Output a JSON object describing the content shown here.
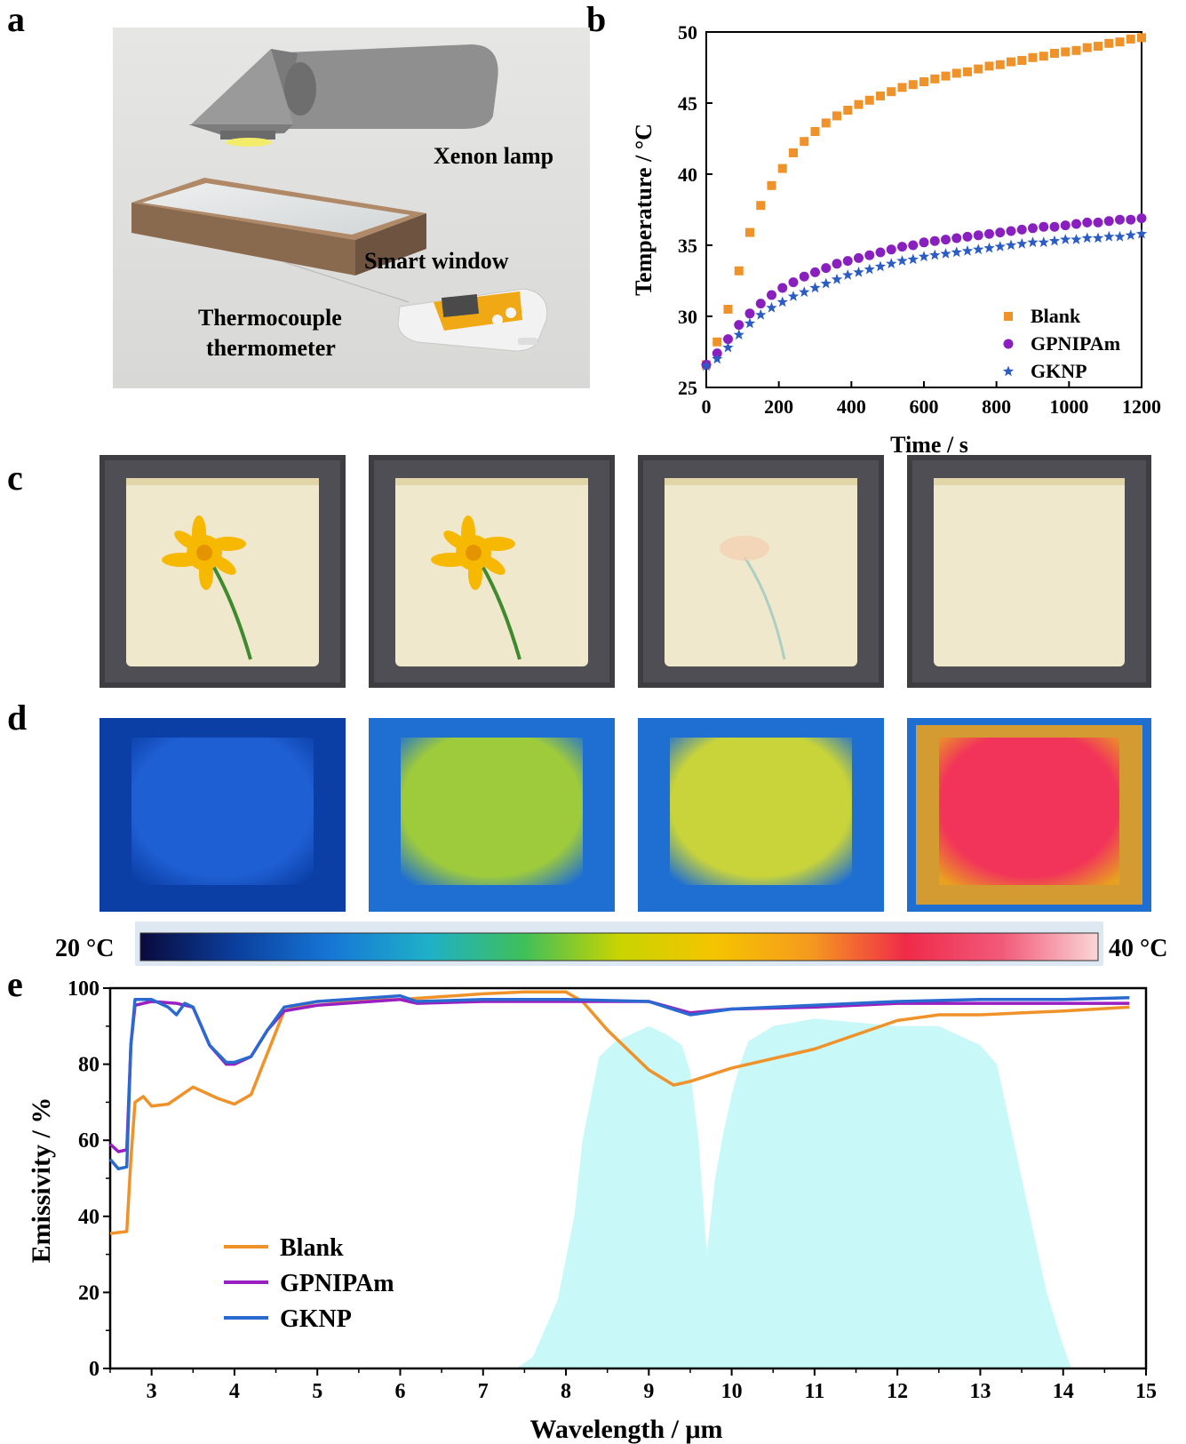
{
  "panel_labels": {
    "a": "a",
    "b": "b",
    "c": "c",
    "d": "d",
    "e": "e"
  },
  "panel_a": {
    "lamp_label": "Xenon lamp",
    "window_label": "Smart window",
    "thermo_label_line1": "Thermocouple",
    "thermo_label_line2": "thermometer"
  },
  "colorbar": {
    "min_label": "20 °C",
    "max_label": "40 °C",
    "stops": [
      "#0a0a3c",
      "#0b3f9e",
      "#1677d6",
      "#1fb0c8",
      "#3fbf5a",
      "#c8d400",
      "#f5c400",
      "#f59a1e",
      "#f02a4a",
      "#f25a7a",
      "#fad6d6"
    ]
  },
  "thermal_images": [
    {
      "inner": "#1f5fd4",
      "outer": "#0b3fa6"
    },
    {
      "inner": "#9ecb3c",
      "outer": "#1f6fd2"
    },
    {
      "inner": "#c8d43a",
      "outer": "#1f6fd2"
    },
    {
      "inner": "#f2335a",
      "outer": "#e8a020"
    }
  ],
  "chart_data": [
    {
      "type": "scatter",
      "xlabel": "Time / s",
      "ylabel": "Temperature / °C",
      "xlim": [
        0,
        1200
      ],
      "ylim": [
        25,
        50
      ],
      "xticks": [
        0,
        200,
        400,
        600,
        800,
        1000,
        1200
      ],
      "yticks": [
        25,
        30,
        35,
        40,
        45,
        50
      ],
      "legend_position": "bottom-right",
      "series": [
        {
          "name": "Blank",
          "color": "#f0922a",
          "marker": "square",
          "x": [
            0,
            30,
            60,
            90,
            120,
            150,
            180,
            210,
            240,
            270,
            300,
            330,
            360,
            390,
            420,
            450,
            480,
            510,
            540,
            570,
            600,
            630,
            660,
            690,
            720,
            750,
            780,
            810,
            840,
            870,
            900,
            930,
            960,
            990,
            1020,
            1050,
            1080,
            1110,
            1140,
            1170,
            1200
          ],
          "y": [
            26.6,
            28.2,
            30.5,
            33.2,
            35.9,
            37.8,
            39.2,
            40.4,
            41.5,
            42.3,
            43.0,
            43.6,
            44.1,
            44.5,
            44.9,
            45.2,
            45.5,
            45.8,
            46.1,
            46.3,
            46.5,
            46.7,
            46.9,
            47.1,
            47.2,
            47.4,
            47.6,
            47.7,
            47.9,
            48.0,
            48.2,
            48.3,
            48.5,
            48.6,
            48.7,
            48.9,
            49.0,
            49.2,
            49.3,
            49.5,
            49.6
          ]
        },
        {
          "name": "GPNIPAm",
          "color": "#8a1fc0",
          "marker": "circle",
          "x": [
            0,
            30,
            60,
            90,
            120,
            150,
            180,
            210,
            240,
            270,
            300,
            330,
            360,
            390,
            420,
            450,
            480,
            510,
            540,
            570,
            600,
            630,
            660,
            690,
            720,
            750,
            780,
            810,
            840,
            870,
            900,
            930,
            960,
            990,
            1020,
            1050,
            1080,
            1110,
            1140,
            1170,
            1200
          ],
          "y": [
            26.6,
            27.4,
            28.4,
            29.4,
            30.2,
            30.9,
            31.5,
            32.0,
            32.4,
            32.8,
            33.1,
            33.4,
            33.7,
            33.9,
            34.1,
            34.3,
            34.5,
            34.7,
            34.9,
            35.0,
            35.2,
            35.3,
            35.4,
            35.5,
            35.6,
            35.7,
            35.8,
            35.9,
            36.0,
            36.1,
            36.2,
            36.3,
            36.3,
            36.4,
            36.5,
            36.6,
            36.6,
            36.7,
            36.8,
            36.8,
            36.9
          ]
        },
        {
          "name": "GKNP",
          "color": "#2a5cc4",
          "marker": "star",
          "x": [
            0,
            30,
            60,
            90,
            120,
            150,
            180,
            210,
            240,
            270,
            300,
            330,
            360,
            390,
            420,
            450,
            480,
            510,
            540,
            570,
            600,
            630,
            660,
            690,
            720,
            750,
            780,
            810,
            840,
            870,
            900,
            930,
            960,
            990,
            1020,
            1050,
            1080,
            1110,
            1140,
            1170,
            1200
          ],
          "y": [
            26.5,
            27.0,
            27.8,
            28.7,
            29.5,
            30.1,
            30.6,
            31.0,
            31.4,
            31.7,
            32.0,
            32.3,
            32.6,
            32.9,
            33.1,
            33.3,
            33.5,
            33.7,
            33.9,
            34.0,
            34.2,
            34.3,
            34.4,
            34.5,
            34.6,
            34.7,
            34.8,
            34.9,
            35.0,
            35.1,
            35.2,
            35.2,
            35.3,
            35.4,
            35.4,
            35.5,
            35.5,
            35.6,
            35.6,
            35.7,
            35.8
          ]
        }
      ]
    },
    {
      "type": "line",
      "xlabel": "Wavelength / μm",
      "ylabel": "Emissivity / %",
      "xlim": [
        2.5,
        15
      ],
      "ylim": [
        0,
        100
      ],
      "xticks": [
        3,
        4,
        5,
        6,
        7,
        8,
        9,
        10,
        11,
        12,
        13,
        14,
        15
      ],
      "yticks": [
        0,
        20,
        40,
        60,
        80,
        100
      ],
      "legend_position": "bottom-left",
      "background_fill_color": "#c8f8f8",
      "background_fill_x": [
        7.4,
        7.6,
        7.9,
        8.1,
        8.2,
        8.4,
        8.6,
        8.8,
        9.0,
        9.2,
        9.4,
        9.5,
        9.6,
        9.7,
        9.8,
        9.9,
        10.0,
        10.1,
        10.2,
        10.5,
        11.0,
        11.5,
        12.0,
        12.5,
        13.0,
        13.2,
        13.4,
        13.6,
        13.8,
        14.0,
        14.1
      ],
      "background_fill_y": [
        0,
        3,
        18,
        40,
        60,
        82,
        86,
        88,
        90,
        88,
        85,
        78,
        60,
        30,
        50,
        62,
        72,
        80,
        86,
        90,
        92,
        91,
        90,
        90,
        85,
        80,
        60,
        40,
        20,
        6,
        0
      ],
      "series": [
        {
          "name": "Blank",
          "color": "#f0922a",
          "x": [
            2.5,
            2.7,
            2.75,
            2.8,
            2.9,
            3.0,
            3.2,
            3.5,
            3.8,
            4.0,
            4.2,
            4.4,
            4.6,
            5.0,
            6.0,
            7.0,
            7.5,
            8.0,
            8.2,
            8.5,
            9.0,
            9.3,
            9.5,
            10.0,
            11.0,
            12.0,
            12.5,
            13.0,
            14.0,
            14.8
          ],
          "y": [
            35.5,
            36,
            55,
            70,
            71.5,
            69,
            69.5,
            74,
            71,
            69.5,
            72,
            83,
            94,
            96.5,
            97,
            98.5,
            99,
            99,
            96.5,
            89,
            78.5,
            74.5,
            75.5,
            79,
            84,
            91.5,
            93,
            93,
            94,
            95
          ]
        },
        {
          "name": "GPNIPAm",
          "color": "#9a1fc0",
          "x": [
            2.5,
            2.6,
            2.7,
            2.75,
            2.8,
            3.0,
            3.3,
            3.5,
            3.7,
            3.9,
            4.0,
            4.2,
            4.4,
            4.6,
            5.0,
            6.0,
            6.2,
            7.0,
            8.0,
            9.0,
            9.5,
            10.0,
            11.0,
            12.0,
            13.0,
            14.0,
            14.8
          ],
          "y": [
            59,
            57,
            57.5,
            85,
            95.5,
            96.5,
            96,
            95,
            85,
            80,
            80,
            82,
            89,
            94,
            95.5,
            97,
            96,
            96.5,
            96.5,
            96.5,
            93.5,
            94.5,
            95,
            96,
            96,
            96,
            96
          ]
        },
        {
          "name": "GKNP",
          "color": "#2a6ad0",
          "x": [
            2.5,
            2.6,
            2.7,
            2.75,
            2.8,
            3.0,
            3.2,
            3.3,
            3.4,
            3.5,
            3.7,
            3.9,
            4.0,
            4.2,
            4.4,
            4.6,
            5.0,
            6.0,
            6.2,
            7.0,
            8.0,
            9.0,
            9.5,
            10.0,
            11.0,
            12.0,
            13.0,
            14.0,
            14.8
          ],
          "y": [
            55,
            52.5,
            53,
            85,
            97,
            97,
            95,
            93,
            96,
            95,
            85,
            80.5,
            80.5,
            82,
            89,
            95,
            96.5,
            98,
            96.5,
            97,
            97,
            96.5,
            93,
            94.5,
            95.5,
            96.5,
            97,
            97,
            97.5
          ]
        }
      ]
    }
  ]
}
